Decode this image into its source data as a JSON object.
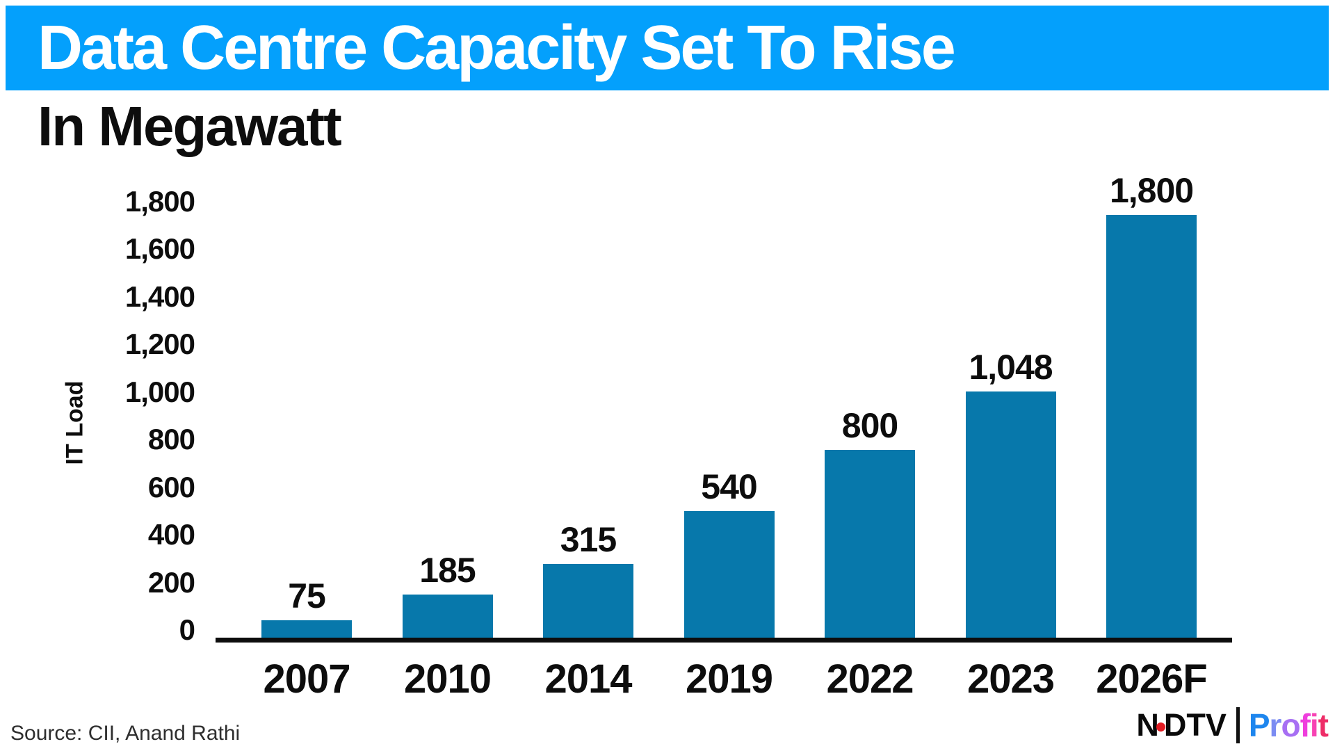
{
  "title": "Data Centre Capacity Set To Rise",
  "subtitle": "In Megawatt",
  "source": "Source: CII, Anand Rathi",
  "colors": {
    "banner": "#04a0fc",
    "bar": "#0778ab",
    "axis": "#0d0d0d",
    "title_text": "#ffffff",
    "text": "#0d0d0d",
    "source_text": "#2e2e2e"
  },
  "logo": {
    "ndtv_prefix": "N",
    "ndtv_suffix": "DTV",
    "dot_color": "#e11b22",
    "divider_color": "#111111",
    "profit_text": "Profit",
    "profit_letter_colors": [
      "#1e86ee",
      "#7b8cf2",
      "#a76ff3",
      "#ef3edd",
      "#f743b3",
      "#ee2d68"
    ]
  },
  "chart_data": {
    "type": "bar",
    "title": "Data Centre Capacity Set To Rise",
    "unit": "Megawatt",
    "categories": [
      "2007",
      "2010",
      "2014",
      "2019",
      "2022",
      "2023",
      "2026F"
    ],
    "values": [
      75,
      185,
      315,
      540,
      800,
      1048,
      1800
    ],
    "value_labels": [
      "75",
      "185",
      "315",
      "540",
      "800",
      "1,048",
      "1,800"
    ],
    "xlabel": "",
    "ylabel": "IT Load",
    "ylim": [
      0,
      1800
    ],
    "ytick_step": 200,
    "yticks": [
      0,
      200,
      400,
      600,
      800,
      1000,
      1200,
      1400,
      1600,
      1800
    ],
    "ytick_labels": [
      "0",
      "200",
      "400",
      "600",
      "800",
      "1,000",
      "1,200",
      "1,400",
      "1,600",
      "1,800"
    ],
    "grid": false,
    "legend": false
  }
}
